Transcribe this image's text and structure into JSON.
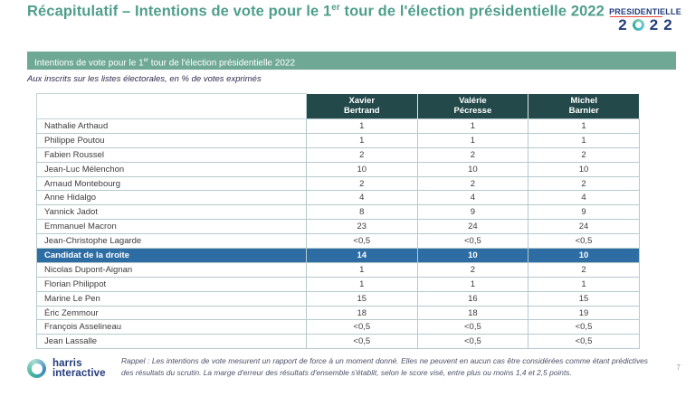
{
  "slide": {
    "title": {
      "pre": "Récapitulatif – Intentions de vote pour le 1",
      "sup": "er",
      "post": " tour de l'élection présidentielle 2022"
    },
    "logo": {
      "brand": "PRESIDENTIELLE",
      "year_digit1": "2",
      "year_digit3": "2",
      "year_digit4": "2",
      "year_zero_icon": "teal-ring-circle"
    },
    "banner": {
      "pre": "Intentions de vote pour le 1",
      "sup": "er",
      "post": " tour de l'élection présidentielle 2022"
    },
    "subtitle": "Aux inscrits sur les listes électorales, en % de votes exprimés",
    "table": {
      "columns": [
        "Xavier\nBertrand",
        "Valérie\nPécresse",
        "Michel\nBarnier"
      ],
      "rows": [
        {
          "name": "Nathalie Arthaud",
          "values": [
            "1",
            "1",
            "1"
          ],
          "highlight": false
        },
        {
          "name": "Philippe Poutou",
          "values": [
            "1",
            "1",
            "1"
          ],
          "highlight": false
        },
        {
          "name": "Fabien Roussel",
          "values": [
            "2",
            "2",
            "2"
          ],
          "highlight": false
        },
        {
          "name": "Jean-Luc Mélenchon",
          "values": [
            "10",
            "10",
            "10"
          ],
          "highlight": false
        },
        {
          "name": "Arnaud Montebourg",
          "values": [
            "2",
            "2",
            "2"
          ],
          "highlight": false
        },
        {
          "name": "Anne Hidalgo",
          "values": [
            "4",
            "4",
            "4"
          ],
          "highlight": false
        },
        {
          "name": "Yannick Jadot",
          "values": [
            "8",
            "9",
            "9"
          ],
          "highlight": false
        },
        {
          "name": "Emmanuel Macron",
          "values": [
            "23",
            "24",
            "24"
          ],
          "highlight": false
        },
        {
          "name": "Jean-Christophe Lagarde",
          "values": [
            "<0,5",
            "<0,5",
            "<0,5"
          ],
          "highlight": false
        },
        {
          "name": "Candidat de la droite",
          "values": [
            "14",
            "10",
            "10"
          ],
          "highlight": true
        },
        {
          "name": "Nicolas Dupont-Aignan",
          "values": [
            "1",
            "2",
            "2"
          ],
          "highlight": false
        },
        {
          "name": "Florian Philippot",
          "values": [
            "1",
            "1",
            "1"
          ],
          "highlight": false
        },
        {
          "name": "Marine Le Pen",
          "values": [
            "15",
            "16",
            "15"
          ],
          "highlight": false
        },
        {
          "name": "Éric Zemmour",
          "values": [
            "18",
            "18",
            "19"
          ],
          "highlight": false
        },
        {
          "name": "François Asselineau",
          "values": [
            "<0,5",
            "<0,5",
            "<0,5"
          ],
          "highlight": false
        },
        {
          "name": "Jean Lassalle",
          "values": [
            "<0,5",
            "<0,5",
            "<0,5"
          ],
          "highlight": false
        }
      ]
    },
    "footer": {
      "brand_line1": "harris",
      "brand_line2": "interactive",
      "brand_icon": "gradient-ring-circle",
      "disclaimer": "Rappel : Les intentions de vote mesurent un rapport de force à un moment donné. Elles ne peuvent en aucun cas être considérées comme étant prédictives des résultats du scrutin. La marge d'erreur des résultats d'ensemble s'établit, selon le score visé, entre plus ou moins 1,4 et 2,5 points.",
      "page_number": "7"
    },
    "colors": {
      "title_teal": "#4f9e8b",
      "banner_green": "#6fa996",
      "header_dark_teal": "#24494b",
      "highlight_blue": "#2e6da4",
      "logo_navy": "#233c7c",
      "logo_red": "#e8453c",
      "table_border": "#b5c9cb"
    }
  }
}
